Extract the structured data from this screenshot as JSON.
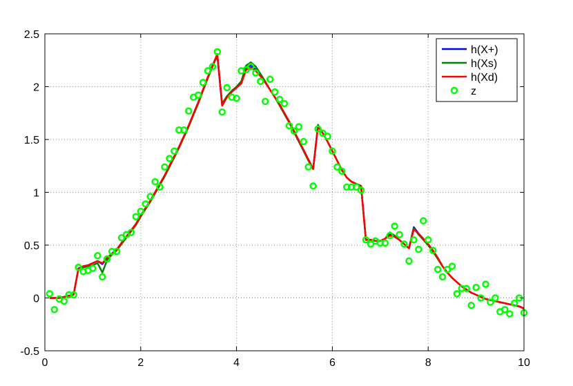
{
  "chart_data": {
    "type": "line",
    "title": "",
    "xlabel": "",
    "ylabel": "",
    "xlim": [
      0,
      10
    ],
    "ylim": [
      -0.5,
      2.5
    ],
    "grid": true,
    "legend_position": "top-right",
    "x_ticks": [
      0,
      2,
      4,
      6,
      8,
      10
    ],
    "x_tick_labels": [
      "0",
      "2",
      "4",
      "6",
      "8",
      "10"
    ],
    "y_ticks": [
      -0.5,
      0,
      0.5,
      1,
      1.5,
      2,
      2.5
    ],
    "y_tick_labels": [
      "-0.5",
      "0",
      "0.5",
      "1",
      "1.5",
      "2",
      "2.5"
    ],
    "series": [
      {
        "name": "h(X+)",
        "kind": "line",
        "color": "#0000ff",
        "x": [
          0.1,
          0.2,
          0.3,
          0.4,
          0.5,
          0.6,
          0.7,
          0.8,
          0.9,
          1.0,
          1.1,
          1.2,
          1.3,
          1.4,
          1.5,
          1.6,
          1.7,
          1.8,
          1.9,
          2.0,
          2.1,
          2.2,
          2.3,
          2.4,
          2.5,
          2.6,
          2.7,
          2.8,
          2.9,
          3.0,
          3.1,
          3.2,
          3.3,
          3.4,
          3.5,
          3.6,
          3.7,
          3.8,
          3.9,
          4.0,
          4.1,
          4.2,
          4.3,
          4.4,
          4.5,
          4.6,
          4.7,
          4.8,
          4.9,
          5.0,
          5.1,
          5.2,
          5.3,
          5.4,
          5.5,
          5.6,
          5.7,
          5.8,
          5.9,
          6.0,
          6.1,
          6.2,
          6.3,
          6.4,
          6.5,
          6.6,
          6.7,
          6.8,
          6.9,
          7.0,
          7.1,
          7.2,
          7.3,
          7.4,
          7.5,
          7.6,
          7.7,
          7.8,
          7.9,
          8.0,
          8.1,
          8.2,
          8.3,
          8.4,
          8.5,
          8.6,
          8.7,
          8.8,
          8.9,
          9.0,
          9.1,
          9.2,
          9.3,
          9.4,
          9.5,
          9.6,
          9.7,
          9.8,
          9.9,
          10.0
        ],
        "y": [
          0.0,
          0.0,
          0.0,
          0.01,
          0.02,
          0.03,
          0.28,
          0.3,
          0.31,
          0.33,
          0.35,
          0.32,
          0.38,
          0.42,
          0.46,
          0.52,
          0.58,
          0.64,
          0.7,
          0.78,
          0.85,
          0.92,
          1.0,
          1.08,
          1.16,
          1.25,
          1.34,
          1.43,
          1.53,
          1.63,
          1.74,
          1.85,
          1.97,
          2.09,
          2.2,
          2.29,
          1.82,
          1.9,
          1.95,
          1.99,
          2.03,
          2.18,
          2.2,
          2.16,
          2.1,
          2.04,
          1.97,
          1.9,
          1.83,
          1.75,
          1.67,
          1.58,
          1.49,
          1.4,
          1.31,
          1.22,
          1.63,
          1.56,
          1.48,
          1.39,
          1.3,
          1.21,
          1.14,
          1.1,
          1.08,
          1.06,
          0.55,
          0.55,
          0.54,
          0.54,
          0.56,
          0.6,
          0.58,
          0.55,
          0.51,
          0.47,
          0.67,
          0.61,
          0.56,
          0.51,
          0.45,
          0.38,
          0.3,
          0.24,
          0.19,
          0.15,
          0.11,
          0.08,
          0.05,
          0.03,
          0.01,
          -0.01,
          -0.02,
          -0.03,
          -0.04,
          -0.05,
          -0.06,
          -0.07,
          -0.08,
          -0.1
        ]
      },
      {
        "name": "h(Xs)",
        "kind": "line",
        "color": "#007f00",
        "x": [
          0.1,
          0.2,
          0.3,
          0.4,
          0.5,
          0.6,
          0.7,
          0.8,
          0.9,
          1.0,
          1.1,
          1.2,
          1.3,
          1.4,
          1.5,
          1.6,
          1.7,
          1.8,
          1.9,
          2.0,
          2.1,
          2.2,
          2.3,
          2.4,
          2.5,
          2.6,
          2.7,
          2.8,
          2.9,
          3.0,
          3.1,
          3.2,
          3.3,
          3.4,
          3.5,
          3.6,
          3.7,
          3.8,
          3.9,
          4.0,
          4.1,
          4.2,
          4.3,
          4.4,
          4.5,
          4.6,
          4.7,
          4.8,
          4.9,
          5.0,
          5.1,
          5.2,
          5.3,
          5.4,
          5.5,
          5.6,
          5.7,
          5.8,
          5.9,
          6.0,
          6.1,
          6.2,
          6.3,
          6.4,
          6.5,
          6.6,
          6.7,
          6.8,
          6.9,
          7.0,
          7.1,
          7.2,
          7.3,
          7.4,
          7.5,
          7.6,
          7.7,
          7.8,
          7.9,
          8.0,
          8.1,
          8.2,
          8.3,
          8.4,
          8.5,
          8.6,
          8.7,
          8.8,
          8.9,
          9.0,
          9.1,
          9.2,
          9.3,
          9.4,
          9.5,
          9.6,
          9.7,
          9.8,
          9.9,
          10.0
        ],
        "y": [
          0.0,
          0.0,
          0.0,
          0.01,
          0.02,
          0.03,
          0.27,
          0.29,
          0.3,
          0.31,
          0.33,
          0.24,
          0.36,
          0.41,
          0.45,
          0.51,
          0.57,
          0.63,
          0.69,
          0.77,
          0.84,
          0.91,
          0.99,
          1.07,
          1.15,
          1.24,
          1.33,
          1.42,
          1.52,
          1.62,
          1.73,
          1.84,
          1.96,
          2.08,
          2.19,
          2.3,
          1.84,
          1.91,
          1.96,
          2.0,
          2.05,
          2.2,
          2.23,
          2.19,
          2.12,
          2.05,
          1.97,
          1.9,
          1.82,
          1.74,
          1.66,
          1.57,
          1.48,
          1.39,
          1.3,
          1.22,
          1.64,
          1.56,
          1.48,
          1.39,
          1.3,
          1.21,
          1.14,
          1.1,
          1.08,
          1.06,
          0.55,
          0.55,
          0.54,
          0.54,
          0.56,
          0.62,
          0.59,
          0.55,
          0.51,
          0.47,
          0.66,
          0.6,
          0.55,
          0.5,
          0.44,
          0.37,
          0.3,
          0.24,
          0.19,
          0.15,
          0.11,
          0.08,
          0.05,
          0.03,
          0.01,
          -0.01,
          -0.02,
          -0.03,
          -0.04,
          -0.05,
          -0.06,
          -0.07,
          -0.08,
          -0.1
        ]
      },
      {
        "name": "h(Xd)",
        "kind": "line",
        "color": "#ff0000",
        "x": [
          0.1,
          0.2,
          0.3,
          0.4,
          0.5,
          0.6,
          0.7,
          0.8,
          0.9,
          1.0,
          1.1,
          1.2,
          1.3,
          1.4,
          1.5,
          1.6,
          1.7,
          1.8,
          1.9,
          2.0,
          2.1,
          2.2,
          2.3,
          2.4,
          2.5,
          2.6,
          2.7,
          2.8,
          2.9,
          3.0,
          3.1,
          3.2,
          3.3,
          3.4,
          3.5,
          3.6,
          3.7,
          3.8,
          3.9,
          4.0,
          4.1,
          4.2,
          4.3,
          4.4,
          4.5,
          4.6,
          4.7,
          4.8,
          4.9,
          5.0,
          5.1,
          5.2,
          5.3,
          5.4,
          5.5,
          5.6,
          5.7,
          5.8,
          5.9,
          6.0,
          6.1,
          6.2,
          6.3,
          6.4,
          6.5,
          6.6,
          6.7,
          6.8,
          6.9,
          7.0,
          7.1,
          7.2,
          7.3,
          7.4,
          7.5,
          7.6,
          7.7,
          7.8,
          7.9,
          8.0,
          8.1,
          8.2,
          8.3,
          8.4,
          8.5,
          8.6,
          8.7,
          8.8,
          8.9,
          9.0,
          9.1,
          9.2,
          9.3,
          9.4,
          9.5,
          9.6,
          9.7,
          9.8,
          9.9,
          10.0
        ],
        "y": [
          0.0,
          0.0,
          0.0,
          0.01,
          0.02,
          0.03,
          0.28,
          0.3,
          0.31,
          0.33,
          0.35,
          0.33,
          0.38,
          0.42,
          0.46,
          0.52,
          0.58,
          0.64,
          0.7,
          0.78,
          0.85,
          0.92,
          1.0,
          1.08,
          1.16,
          1.25,
          1.34,
          1.43,
          1.53,
          1.63,
          1.74,
          1.85,
          1.97,
          2.09,
          2.2,
          2.31,
          1.82,
          1.9,
          1.95,
          1.99,
          2.03,
          2.16,
          2.18,
          2.15,
          2.1,
          2.04,
          1.97,
          1.9,
          1.83,
          1.75,
          1.67,
          1.58,
          1.49,
          1.4,
          1.31,
          1.22,
          1.62,
          1.56,
          1.48,
          1.39,
          1.3,
          1.21,
          1.14,
          1.1,
          1.08,
          1.06,
          0.55,
          0.55,
          0.54,
          0.54,
          0.56,
          0.59,
          0.58,
          0.55,
          0.51,
          0.47,
          0.65,
          0.61,
          0.56,
          0.51,
          0.45,
          0.38,
          0.3,
          0.24,
          0.19,
          0.15,
          0.11,
          0.08,
          0.05,
          0.03,
          0.01,
          -0.01,
          -0.02,
          -0.03,
          -0.04,
          -0.05,
          -0.06,
          -0.07,
          -0.08,
          -0.1
        ]
      },
      {
        "name": "z",
        "kind": "scatter",
        "marker": "circle",
        "color": "#00ff00",
        "x": [
          0.1,
          0.2,
          0.3,
          0.4,
          0.5,
          0.6,
          0.7,
          0.8,
          0.9,
          1.0,
          1.1,
          1.2,
          1.3,
          1.4,
          1.5,
          1.6,
          1.7,
          1.8,
          1.9,
          2.0,
          2.1,
          2.2,
          2.3,
          2.4,
          2.5,
          2.6,
          2.7,
          2.8,
          2.9,
          3.0,
          3.1,
          3.2,
          3.3,
          3.4,
          3.5,
          3.6,
          3.7,
          3.8,
          3.9,
          4.0,
          4.1,
          4.2,
          4.3,
          4.4,
          4.5,
          4.6,
          4.7,
          4.8,
          4.9,
          5.0,
          5.1,
          5.2,
          5.3,
          5.4,
          5.5,
          5.6,
          5.7,
          5.8,
          5.9,
          6.0,
          6.1,
          6.2,
          6.3,
          6.4,
          6.5,
          6.6,
          6.7,
          6.8,
          6.9,
          7.0,
          7.1,
          7.2,
          7.3,
          7.4,
          7.5,
          7.6,
          7.7,
          7.8,
          7.9,
          8.0,
          8.1,
          8.2,
          8.3,
          8.4,
          8.5,
          8.6,
          8.7,
          8.8,
          8.9,
          9.0,
          9.1,
          9.2,
          9.3,
          9.4,
          9.5,
          9.6,
          9.7,
          9.8,
          9.9,
          10.0
        ],
        "y": [
          0.04,
          -0.11,
          -0.01,
          -0.03,
          0.03,
          0.03,
          0.29,
          0.25,
          0.26,
          0.28,
          0.4,
          0.2,
          0.37,
          0.44,
          0.44,
          0.57,
          0.6,
          0.62,
          0.77,
          0.82,
          0.89,
          0.96,
          1.1,
          1.05,
          1.24,
          1.32,
          1.39,
          1.59,
          1.59,
          1.77,
          1.9,
          1.92,
          2.04,
          2.15,
          2.19,
          2.33,
          1.76,
          1.99,
          1.9,
          1.89,
          2.15,
          2.16,
          2.19,
          2.13,
          2.05,
          1.86,
          2.07,
          1.95,
          1.88,
          1.84,
          1.63,
          1.58,
          1.62,
          1.48,
          1.24,
          1.06,
          1.6,
          1.56,
          1.53,
          1.39,
          1.24,
          1.2,
          1.05,
          1.05,
          1.05,
          1.02,
          0.55,
          0.51,
          0.54,
          0.52,
          0.52,
          0.59,
          0.68,
          0.6,
          0.51,
          0.35,
          0.55,
          0.46,
          0.73,
          0.55,
          0.45,
          0.27,
          0.2,
          0.27,
          0.3,
          0.04,
          0.09,
          0.09,
          -0.07,
          0.1,
          0.0,
          0.13,
          -0.04,
          0.0,
          -0.13,
          -0.11,
          -0.15,
          -0.05,
          0.0,
          -0.14
        ]
      }
    ]
  }
}
